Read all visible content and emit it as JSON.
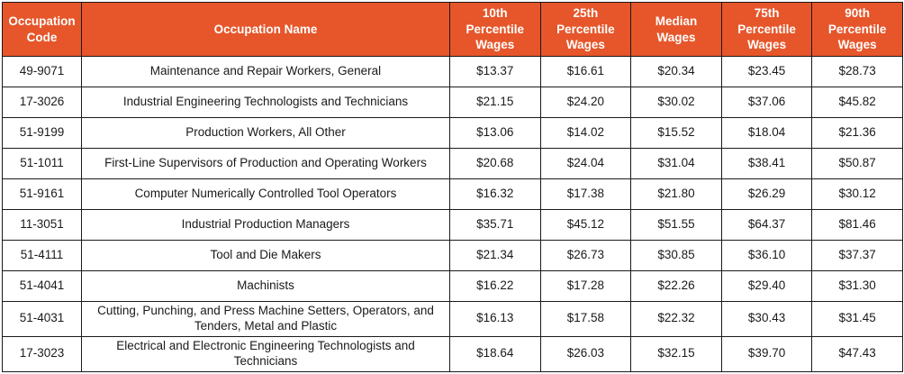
{
  "colors": {
    "header_bg": "#e6562a",
    "header_text": "#ffffff",
    "border": "#1a1a1a",
    "body_text": "#1a1a1a"
  },
  "chart_data": {
    "type": "table",
    "columns": [
      "Occupation\nCode",
      "Occupation Name",
      "10th\nPercentile\nWages",
      "25th\nPercentile\nWages",
      "Median\nWages",
      "75th\nPercentile\nWages",
      "90th\nPercentile\nWages"
    ],
    "rows": [
      {
        "code": "49-9071",
        "name": "Maintenance and Repair Workers, General",
        "wages": [
          "$13.37",
          "$16.61",
          "$20.34",
          "$23.45",
          "$28.73"
        ]
      },
      {
        "code": "17-3026",
        "name": "Industrial Engineering Technologists and Technicians",
        "wages": [
          "$21.15",
          "$24.20",
          "$30.02",
          "$37.06",
          "$45.82"
        ]
      },
      {
        "code": "51-9199",
        "name": "Production Workers, All Other",
        "wages": [
          "$13.06",
          "$14.02",
          "$15.52",
          "$18.04",
          "$21.36"
        ]
      },
      {
        "code": "51-1011",
        "name": "First-Line Supervisors of Production and Operating Workers",
        "wages": [
          "$20.68",
          "$24.04",
          "$31.04",
          "$38.41",
          "$50.87"
        ]
      },
      {
        "code": "51-9161",
        "name": "Computer Numerically Controlled Tool Operators",
        "wages": [
          "$16.32",
          "$17.38",
          "$21.80",
          "$26.29",
          "$30.12"
        ]
      },
      {
        "code": "11-3051",
        "name": "Industrial Production Managers",
        "wages": [
          "$35.71",
          "$45.12",
          "$51.55",
          "$64.37",
          "$81.46"
        ]
      },
      {
        "code": "51-4111",
        "name": "Tool and Die Makers",
        "wages": [
          "$21.34",
          "$26.73",
          "$30.85",
          "$36.10",
          "$37.37"
        ]
      },
      {
        "code": "51-4041",
        "name": "Machinists",
        "wages": [
          "$16.22",
          "$17.28",
          "$22.26",
          "$29.40",
          "$31.30"
        ]
      },
      {
        "code": "51-4031",
        "name": "Cutting, Punching, and Press Machine Setters, Operators, and Tenders, Metal and Plastic",
        "wages": [
          "$16.13",
          "$17.58",
          "$22.32",
          "$30.43",
          "$31.45"
        ]
      },
      {
        "code": "17-3023",
        "name": "Electrical and Electronic Engineering Technologists and Technicians",
        "wages": [
          "$18.64",
          "$26.03",
          "$32.15",
          "$39.70",
          "$47.43"
        ]
      }
    ]
  }
}
